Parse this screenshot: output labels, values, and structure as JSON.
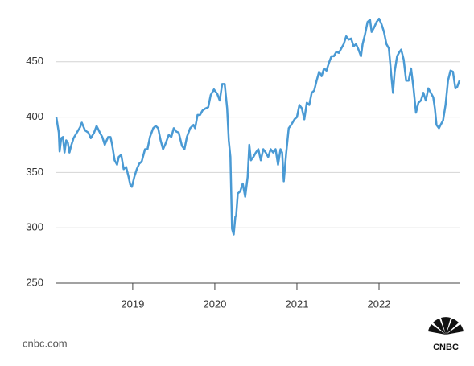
{
  "chart_data": {
    "type": "line",
    "x": [
      2018.07,
      2018.1,
      2018.11,
      2018.13,
      2018.15,
      2018.17,
      2018.19,
      2018.21,
      2018.23,
      2018.25,
      2018.28,
      2018.32,
      2018.36,
      2018.38,
      2018.42,
      2018.46,
      2018.49,
      2018.53,
      2018.56,
      2018.6,
      2018.63,
      2018.66,
      2018.7,
      2018.73,
      2018.75,
      2018.78,
      2018.81,
      2018.83,
      2018.86,
      2018.89,
      2018.92,
      2018.95,
      2018.97,
      2018.99,
      2019.02,
      2019.05,
      2019.08,
      2019.11,
      2019.15,
      2019.18,
      2019.21,
      2019.25,
      2019.28,
      2019.31,
      2019.34,
      2019.37,
      2019.4,
      2019.44,
      2019.47,
      2019.5,
      2019.53,
      2019.56,
      2019.6,
      2019.63,
      2019.66,
      2019.7,
      2019.74,
      2019.76,
      2019.79,
      2019.82,
      2019.85,
      2019.89,
      2019.92,
      2019.95,
      2019.99,
      2020.03,
      2020.06,
      2020.09,
      2020.12,
      2020.15,
      2020.17,
      2020.19,
      2020.21,
      2020.23,
      2020.25,
      2020.26,
      2020.28,
      2020.31,
      2020.34,
      2020.37,
      2020.4,
      2020.42,
      2020.44,
      2020.47,
      2020.5,
      2020.53,
      2020.56,
      2020.59,
      2020.62,
      2020.65,
      2020.68,
      2020.71,
      2020.74,
      2020.77,
      2020.8,
      2020.82,
      2020.84,
      2020.87,
      2020.9,
      2020.93,
      2020.97,
      2021.0,
      2021.03,
      2021.06,
      2021.09,
      2021.12,
      2021.15,
      2021.18,
      2021.21,
      2021.24,
      2021.27,
      2021.3,
      2021.33,
      2021.36,
      2021.39,
      2021.42,
      2021.45,
      2021.48,
      2021.51,
      2021.54,
      2021.57,
      2021.6,
      2021.63,
      2021.66,
      2021.69,
      2021.72,
      2021.75,
      2021.78,
      2021.8,
      2021.83,
      2021.86,
      2021.89,
      2021.91,
      2021.94,
      2021.97,
      2022.0,
      2022.03,
      2022.06,
      2022.09,
      2022.12,
      2022.15,
      2022.17,
      2022.19,
      2022.22,
      2022.25,
      2022.27,
      2022.3,
      2022.33,
      2022.36,
      2022.39,
      2022.42,
      2022.45,
      2022.48,
      2022.51,
      2022.54,
      2022.57,
      2022.6,
      2022.63,
      2022.66,
      2022.68,
      2022.7,
      2022.73,
      2022.75,
      2022.78,
      2022.81,
      2022.84,
      2022.87,
      2022.9,
      2022.93,
      2022.95,
      2022.98
    ],
    "values": [
      400,
      386,
      369,
      381,
      382,
      368,
      379,
      377,
      368,
      374,
      381,
      386,
      391,
      395,
      388,
      386,
      381,
      386,
      392,
      386,
      382,
      375,
      382,
      382,
      375,
      361,
      357,
      364,
      366,
      353,
      355,
      346,
      339,
      337,
      346,
      353,
      358,
      360,
      371,
      371,
      382,
      390,
      392,
      390,
      379,
      371,
      376,
      384,
      382,
      390,
      387,
      386,
      374,
      371,
      382,
      390,
      393,
      390,
      402,
      402,
      406,
      408,
      409,
      420,
      425,
      421,
      415,
      430,
      430,
      408,
      379,
      364,
      299,
      294,
      310,
      311,
      331,
      333,
      340,
      328,
      346,
      375,
      361,
      364,
      368,
      371,
      361,
      371,
      368,
      364,
      371,
      368,
      371,
      357,
      371,
      368,
      342,
      368,
      390,
      393,
      398,
      400,
      411,
      408,
      398,
      413,
      411,
      422,
      424,
      433,
      441,
      437,
      444,
      442,
      449,
      455,
      455,
      459,
      458,
      462,
      466,
      473,
      470,
      471,
      464,
      466,
      461,
      455,
      466,
      475,
      486,
      488,
      477,
      481,
      486,
      489,
      484,
      477,
      466,
      462,
      437,
      422,
      441,
      455,
      459,
      461,
      452,
      433,
      433,
      444,
      426,
      404,
      413,
      415,
      422,
      415,
      426,
      422,
      418,
      408,
      393,
      390,
      393,
      397,
      411,
      433,
      442,
      441,
      426,
      427,
      433
    ],
    "color": "#4a9ad4",
    "xlim": [
      2018.07,
      2022.98
    ],
    "xticks": [
      2019,
      2020,
      2021,
      2022
    ],
    "ylim": [
      250,
      500
    ],
    "yticks": [
      250,
      300,
      350,
      400,
      450
    ],
    "grid": true,
    "source": "cnbc.com",
    "logo": "CNBC"
  }
}
